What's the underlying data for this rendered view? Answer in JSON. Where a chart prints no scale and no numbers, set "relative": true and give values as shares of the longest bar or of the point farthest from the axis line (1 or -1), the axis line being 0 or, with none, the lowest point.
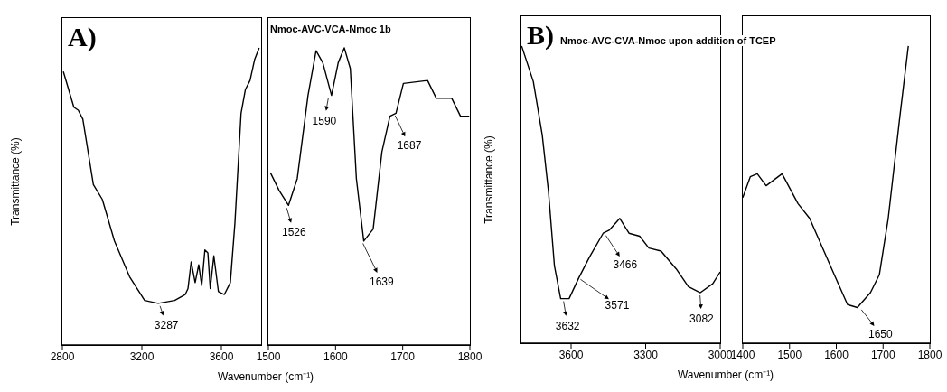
{
  "chart_data": [
    {
      "type": "line",
      "title": "A)",
      "ylabel": "Transmittance (%)",
      "relative": true,
      "xlim": [
        2800,
        3800
      ],
      "xticks": [
        2800,
        3200,
        3600
      ],
      "color": "#000000",
      "x": [
        2805,
        2858,
        2880,
        2903,
        2956,
        3001,
        3062,
        3138,
        3214,
        3282,
        3365,
        3418,
        3432,
        3448,
        3468,
        3486,
        3501,
        3517,
        3532,
        3544,
        3562,
        3585,
        3615,
        3645,
        3668,
        3699,
        3721,
        3744,
        3767,
        3790
      ],
      "values": [
        0.92,
        0.8,
        0.79,
        0.76,
        0.54,
        0.49,
        0.35,
        0.23,
        0.15,
        0.14,
        0.15,
        0.17,
        0.19,
        0.28,
        0.21,
        0.27,
        0.2,
        0.32,
        0.31,
        0.19,
        0.3,
        0.18,
        0.17,
        0.21,
        0.41,
        0.78,
        0.86,
        0.89,
        0.96,
        1
      ],
      "annotations": [
        {
          "text": "3287",
          "x": 3287,
          "y": 0.14
        }
      ]
    },
    {
      "type": "line",
      "title": "Nmoc-AVC-VCA-Nmoc 1b",
      "xlabel": "Wavenumber (cm⁻¹)",
      "relative": true,
      "xlim": [
        1500,
        1800
      ],
      "xticks": [
        1500,
        1600,
        1700,
        1800
      ],
      "color": "#000000",
      "x": [
        1503,
        1516,
        1530,
        1543,
        1559,
        1571,
        1581,
        1594,
        1604,
        1613,
        1622,
        1631,
        1642,
        1656,
        1669,
        1681,
        1690,
        1701,
        1737,
        1750,
        1773,
        1786,
        1799
      ],
      "values": [
        0.58,
        0.52,
        0.47,
        0.56,
        0.84,
        0.99,
        0.95,
        0.84,
        0.95,
        1,
        0.93,
        0.56,
        0.35,
        0.39,
        0.65,
        0.77,
        0.78,
        0.88,
        0.89,
        0.83,
        0.83,
        0.77,
        0.77
      ],
      "annotations": [
        {
          "text": "1526",
          "x": 1526,
          "y": 0.47
        },
        {
          "text": "1590",
          "x": 1590,
          "y": 0.84
        },
        {
          "text": "1639",
          "x": 1639,
          "y": 0.35
        },
        {
          "text": "1687",
          "x": 1687,
          "y": 0.78
        }
      ]
    },
    {
      "type": "line",
      "title": "B)",
      "subtitle": "Nmoc-AVC-CVA-Nmoc upon addition of TCEP",
      "ylabel": "Transmittance (%)",
      "relative": true,
      "xlim": [
        3800,
        3000
      ],
      "xticks": [
        3600,
        3300,
        3000
      ],
      "color": "#000000",
      "x": [
        3799,
        3752,
        3716,
        3691,
        3667,
        3642,
        3608,
        3569,
        3526,
        3471,
        3447,
        3404,
        3367,
        3324,
        3287,
        3238,
        3177,
        3128,
        3080,
        3030,
        3000
      ],
      "values": [
        1,
        0.88,
        0.7,
        0.51,
        0.26,
        0.15,
        0.15,
        0.22,
        0.29,
        0.37,
        0.38,
        0.42,
        0.37,
        0.36,
        0.32,
        0.31,
        0.25,
        0.19,
        0.17,
        0.2,
        0.24
      ],
      "annotations": [
        {
          "text": "3632",
          "x": 3632,
          "y": 0.15
        },
        {
          "text": "3571",
          "x": 3571,
          "y": 0.22
        },
        {
          "text": "3466",
          "x": 3466,
          "y": 0.37
        },
        {
          "text": "3082",
          "x": 3082,
          "y": 0.17
        }
      ]
    },
    {
      "type": "line",
      "xlabel": "Wavenumber (cm⁻¹)",
      "relative": true,
      "xlim": [
        1400,
        1800
      ],
      "xticks": [
        1400,
        1500,
        1600,
        1700,
        1800
      ],
      "color": "#000000",
      "x": [
        1400,
        1416,
        1431,
        1450,
        1484,
        1518,
        1543,
        1593,
        1624,
        1645,
        1673,
        1692,
        1711,
        1735,
        1754
      ],
      "values": [
        0.49,
        0.56,
        0.57,
        0.53,
        0.57,
        0.47,
        0.42,
        0.24,
        0.13,
        0.12,
        0.17,
        0.23,
        0.42,
        0.75,
        1
      ],
      "annotations": [
        {
          "text": "1650",
          "x": 1650,
          "y": 0.12
        }
      ]
    }
  ]
}
